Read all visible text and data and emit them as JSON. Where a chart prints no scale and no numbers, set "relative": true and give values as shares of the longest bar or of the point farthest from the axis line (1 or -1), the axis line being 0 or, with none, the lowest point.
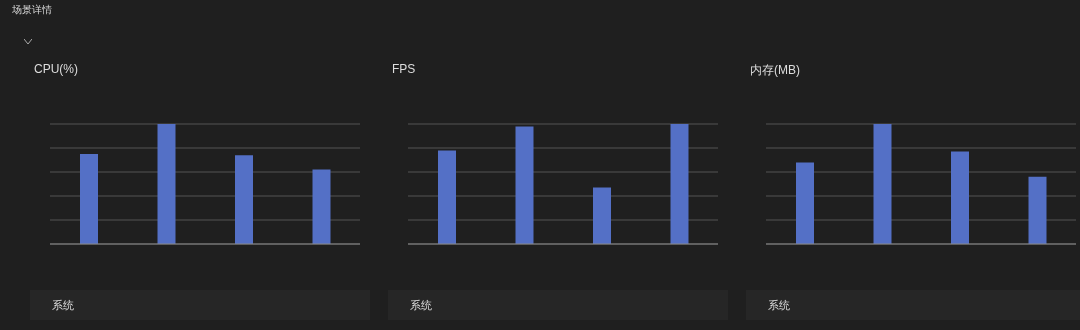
{
  "chart_data": [
    {
      "type": "bar",
      "title": "CPU(%)",
      "categories": [
        null,
        null,
        null,
        null
      ],
      "relative": true,
      "grid": "y",
      "annotations": [
        "场景详情",
        "系统"
      ],
      "series": [
        {
          "color": "#5470c6",
          "values": [
            0.75,
            1,
            0.74,
            0.62
          ]
        }
      ]
    },
    {
      "type": "bar",
      "title": "FPS",
      "categories": [
        null,
        null,
        null,
        null
      ],
      "relative": true,
      "grid": "y",
      "annotations": [
        "系统"
      ],
      "series": [
        {
          "color": "#5470c6",
          "values": [
            0.78,
            0.98,
            0.47,
            1
          ]
        }
      ]
    },
    {
      "type": "bar",
      "title": "内存(MB)",
      "categories": [
        null,
        null,
        null,
        null
      ],
      "relative": true,
      "grid": "y",
      "annotations": [
        "系统"
      ],
      "series": [
        {
          "color": "#5470c6",
          "values": [
            0.68,
            1,
            0.77,
            0.56
          ]
        }
      ]
    }
  ]
}
